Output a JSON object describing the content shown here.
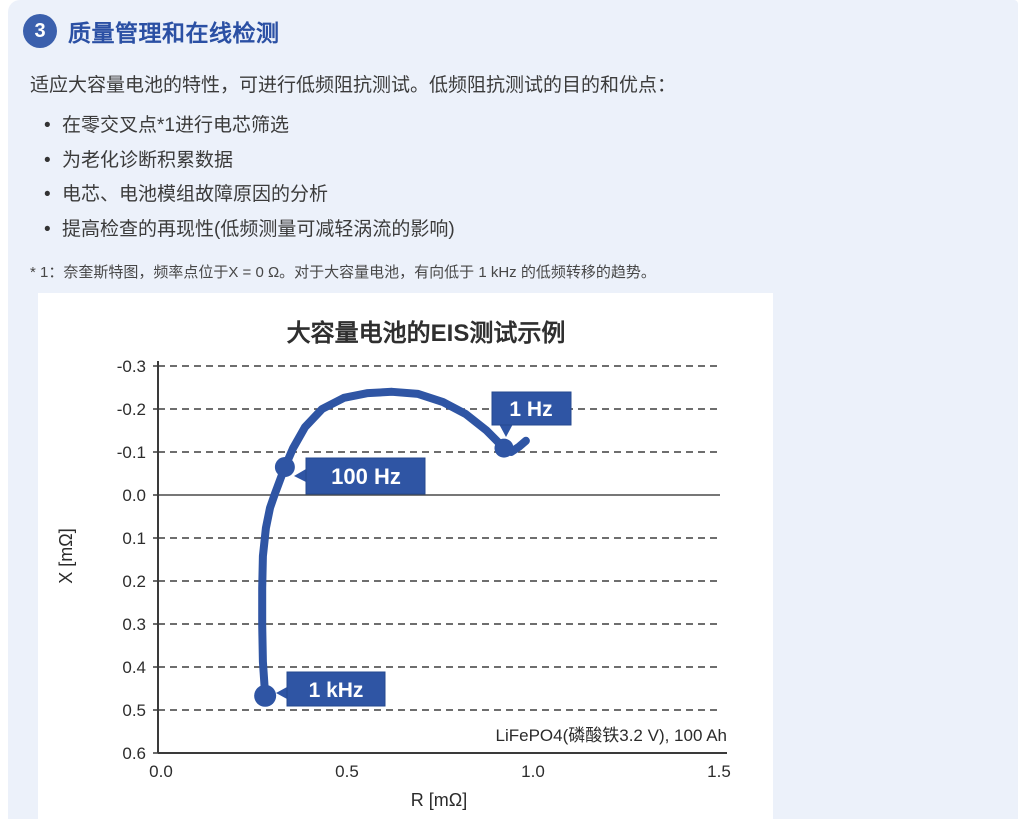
{
  "colors": {
    "panel_bg": "#ecf1fa",
    "accent_blue": "#2b50a4",
    "badge_blue": "#3b60ad",
    "curve_blue": "#2f55a4"
  },
  "header": {
    "badge": "3",
    "title": "质量管理和在线检测"
  },
  "intro": "适应大容量电池的特性，可进行低频阻抗测试。低频阻抗测试的目的和优点：",
  "bullets": [
    "在零交叉点*1进行电芯筛选",
    "为老化诊断积累数据",
    "电芯、电池模组故障原因的分析",
    "提高检查的再现性(低频测量可减轻涡流的影响)"
  ],
  "footnote": "* 1：奈奎斯特图，频率点位于X = 0 Ω。对于大容量电池，有向低于 1 kHz 的低频转移的趋势。",
  "chart_data": {
    "type": "line",
    "title": "大容量电池的EIS测试示例",
    "xlabel": "R [mΩ]",
    "ylabel": "X [mΩ]",
    "annotation": "LiFePO4(磷酸铁3.2 V), 100 Ah",
    "x_ticks": [
      0.0,
      0.5,
      1.0,
      1.5
    ],
    "x_tick_labels": [
      "0.0",
      "0.5",
      "1.0",
      "1.5"
    ],
    "y_ticks": [
      -0.3,
      -0.2,
      -0.1,
      0.0,
      0.1,
      0.2,
      0.3,
      0.4,
      0.5,
      0.6
    ],
    "y_tick_labels": [
      "-0.3",
      "-0.2",
      "-0.1",
      "0.0",
      "0.1",
      "0.2",
      "0.3",
      "0.4",
      "0.5",
      "0.6"
    ],
    "xlim": [
      0,
      1.5
    ],
    "ylim": [
      -0.3,
      0.6
    ],
    "y_axis_inverted": true,
    "grid": "horizontal dashed, solid line at 0.0",
    "legend": "none",
    "series": [
      {
        "name": "EIS Nyquist curve",
        "color": "#2f55a4",
        "points": [
          [
            0.28,
            0.467
          ],
          [
            0.274,
            0.388
          ],
          [
            0.272,
            0.302
          ],
          [
            0.272,
            0.216
          ],
          [
            0.274,
            0.142
          ],
          [
            0.282,
            0.077
          ],
          [
            0.293,
            0.03
          ],
          [
            0.306,
            -0.002
          ],
          [
            0.323,
            -0.042
          ],
          [
            0.333,
            -0.065
          ],
          [
            0.355,
            -0.109
          ],
          [
            0.387,
            -0.158
          ],
          [
            0.433,
            -0.2
          ],
          [
            0.492,
            -0.226
          ],
          [
            0.556,
            -0.237
          ],
          [
            0.621,
            -0.24
          ],
          [
            0.691,
            -0.235
          ],
          [
            0.758,
            -0.216
          ],
          [
            0.82,
            -0.188
          ],
          [
            0.874,
            -0.151
          ],
          [
            0.922,
            -0.109
          ],
          [
            0.941,
            -0.1
          ],
          [
            0.962,
            -0.112
          ],
          [
            0.981,
            -0.126
          ]
        ]
      }
    ],
    "markers": [
      {
        "label": "1 kHz",
        "R": 0.28,
        "X": 0.467
      },
      {
        "label": "100 Hz",
        "R": 0.333,
        "X": -0.065
      },
      {
        "label": "1 Hz",
        "R": 0.922,
        "X": -0.109
      }
    ]
  }
}
